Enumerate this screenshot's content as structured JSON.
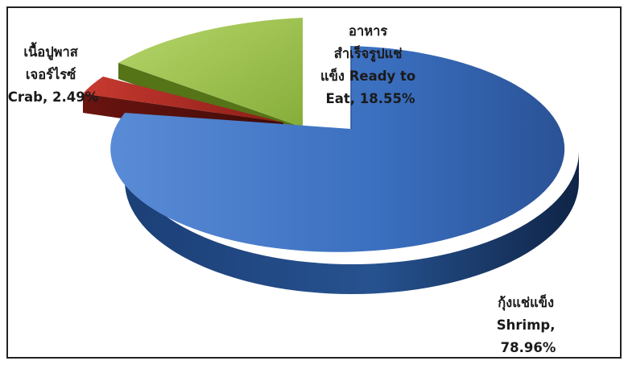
{
  "chart_data": {
    "type": "pie",
    "style": "3d-exploded",
    "slices": [
      {
        "name": "กุ้งแช่แข็ง Shrimp",
        "value": 78.96,
        "color": "#3a6fbf",
        "label_lines": [
          "กุ้งแช่แข็ง",
          "Shrimp,",
          "78.96%"
        ]
      },
      {
        "name": "เนื้อปูพาสเจอร์ไรซ์ Crab",
        "value": 2.49,
        "color": "#b22a24",
        "label_lines": [
          "เนื้อปูพาส",
          "เจอร์ไรซ์",
          "Crab, 2.49%"
        ]
      },
      {
        "name": "อาหารสำเร็จรูปแช่แข็ง Ready to Eat",
        "value": 18.55,
        "color": "#9bc34a",
        "label_lines": [
          "อาหาร",
          "สำเร็จรูปแช่",
          "แข็ง  Ready to",
          "Eat, 18.55%"
        ]
      }
    ],
    "title": "",
    "legend": "none",
    "data_labels": "outside-end"
  }
}
